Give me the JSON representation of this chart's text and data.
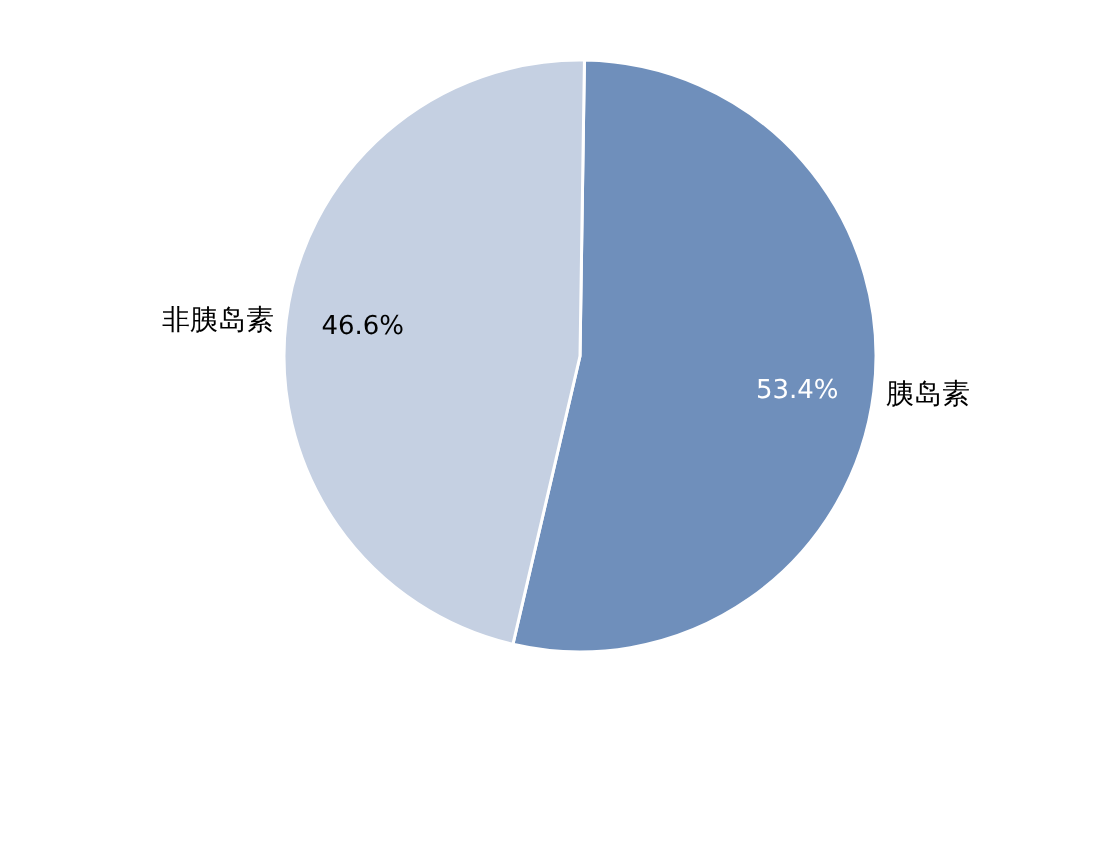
{
  "chart_data": {
    "type": "pie",
    "categories": [
      "胰岛素",
      "非胰岛素"
    ],
    "values": [
      53.4,
      46.6
    ],
    "colors": [
      "#6f8fbb",
      "#c5d0e2"
    ],
    "value_labels": [
      "53.4%",
      "46.6%"
    ]
  }
}
